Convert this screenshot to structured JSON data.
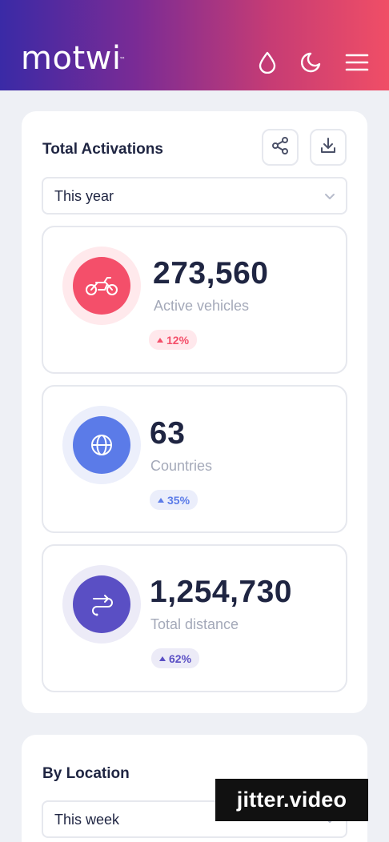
{
  "header": {
    "logo": "motwi",
    "logo_tm": "™",
    "icons": [
      "droplet-icon",
      "moon-icon",
      "menu-icon"
    ]
  },
  "activations": {
    "title": "Total Activations",
    "share_icon": "share-icon",
    "download_icon": "download-icon",
    "period": "This year",
    "stats": [
      {
        "value": "273,560",
        "label": "Active vehicles",
        "change": "12%",
        "color": "#f44f6a",
        "icon": "motorbike-icon"
      },
      {
        "value": "63",
        "label": "Countries",
        "change": "35%",
        "color": "#5b7be8",
        "icon": "globe-icon"
      },
      {
        "value": "1,254,730",
        "label": "Total distance",
        "change": "62%",
        "color": "#5a4fc4",
        "icon": "route-icon"
      }
    ]
  },
  "location": {
    "title": "By Location",
    "period": "This week"
  },
  "watermark": "jitter.video"
}
